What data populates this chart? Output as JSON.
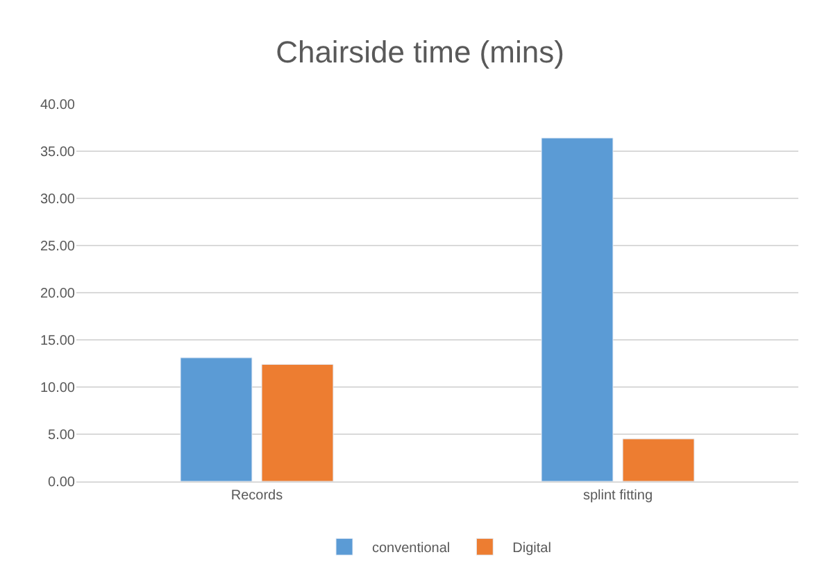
{
  "chart_data": {
    "type": "bar",
    "title": "Chairside time (mins)",
    "categories": [
      "Records",
      "splint fitting"
    ],
    "series": [
      {
        "name": "conventional",
        "color": "#5b9bd5",
        "values": [
          13.1,
          36.4
        ]
      },
      {
        "name": "Digital",
        "color": "#ed7d31",
        "values": [
          12.4,
          4.5
        ]
      }
    ],
    "ylim": [
      0,
      40
    ],
    "yticks": [
      {
        "value": 0,
        "label": "0.00"
      },
      {
        "value": 5,
        "label": "5.00"
      },
      {
        "value": 10,
        "label": "10.00"
      },
      {
        "value": 15,
        "label": "15.00"
      },
      {
        "value": 20,
        "label": "20.00"
      },
      {
        "value": 25,
        "label": "25.00"
      },
      {
        "value": 30,
        "label": "30.00"
      },
      {
        "value": 35,
        "label": "35.00"
      },
      {
        "value": 40,
        "label": "40.00"
      }
    ],
    "grid": "y",
    "legend": "bottom"
  }
}
